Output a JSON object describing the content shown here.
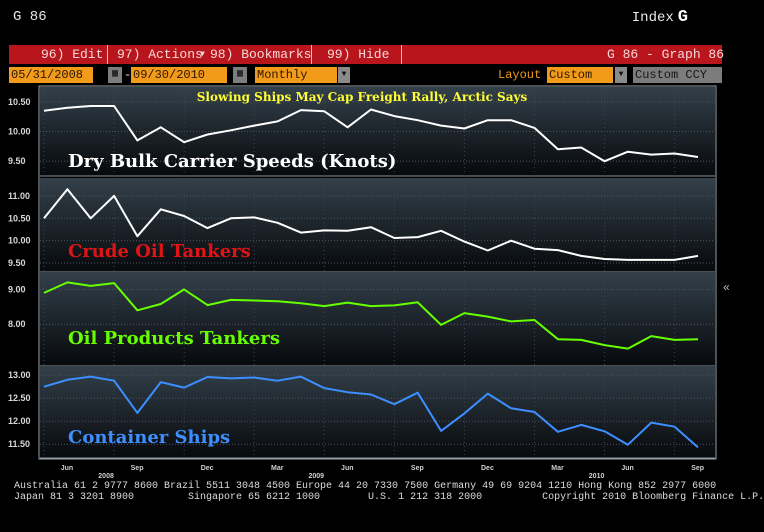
{
  "header": {
    "ticker": "G 86",
    "index_label": "Index",
    "index_key": "G"
  },
  "menu": {
    "edit": "96) Edit",
    "actions": "97) Actions",
    "bookmarks": "98) Bookmarks",
    "hide": "99) Hide",
    "graph_id": "G 86 - Graph 86"
  },
  "toolbar": {
    "start_date": "05/31/2008",
    "end_date": "09/30/2010",
    "date_sep": "-",
    "frequency": "Monthly",
    "layout_label": "Layout",
    "layout_value": "Custom",
    "currency": "Custom CCY"
  },
  "colors": {
    "menu_bar": "#b8161c",
    "field": "#f29a19",
    "title": "#ffff33",
    "panel_bg_top": "#33404a",
    "panel_bg_bottom": "#07090c"
  },
  "chart_data": [
    {
      "type": "line",
      "title": "Slowing Ships May Cap Freight Rally, Arctic Says",
      "series": [
        {
          "name": "Dry Bulk Carrier Speeds (Knots)",
          "color": "#ffffff",
          "values": [
            10.35,
            10.4,
            10.43,
            10.43,
            9.85,
            10.07,
            9.82,
            9.95,
            10.02,
            10.1,
            10.17,
            10.36,
            10.34,
            10.07,
            10.37,
            10.26,
            10.19,
            10.1,
            10.05,
            10.19,
            10.19,
            10.06,
            9.7,
            9.73,
            9.5,
            9.66,
            9.61,
            9.63,
            9.57
          ]
        }
      ],
      "yticks": [
        9.5,
        10.0,
        10.5
      ],
      "ylim": [
        9.25,
        10.75
      ]
    },
    {
      "type": "line",
      "series": [
        {
          "name": "Crude Oil Tankers",
          "color": "#ffffff",
          "values": [
            10.5,
            11.15,
            10.5,
            11.0,
            10.1,
            10.7,
            10.55,
            10.28,
            10.5,
            10.52,
            10.4,
            10.18,
            10.23,
            10.22,
            10.3,
            10.06,
            10.08,
            10.22,
            9.98,
            9.78,
            10.0,
            9.82,
            9.79,
            9.66,
            9.59,
            9.57,
            9.57,
            9.57,
            9.66
          ]
        }
      ],
      "yticks": [
        9.5,
        10.0,
        10.5,
        11.0
      ],
      "ylim": [
        9.3,
        11.4
      ]
    },
    {
      "type": "line",
      "series": [
        {
          "name": "Oil Products Tankers",
          "color": "#66ff00",
          "values": [
            8.9,
            9.2,
            9.1,
            9.18,
            8.4,
            8.58,
            9.0,
            8.55,
            8.7,
            8.68,
            8.66,
            8.6,
            8.52,
            8.62,
            8.52,
            8.54,
            8.63,
            7.98,
            8.32,
            8.22,
            8.08,
            8.12,
            7.57,
            7.55,
            7.4,
            7.3,
            7.66,
            7.55,
            7.57
          ]
        }
      ],
      "yticks": [
        8.0,
        9.0
      ],
      "ylim": [
        6.8,
        9.5
      ]
    },
    {
      "type": "line",
      "series": [
        {
          "name": "Container Ships",
          "color": "#3d8fff",
          "values": [
            12.75,
            12.9,
            12.97,
            12.88,
            12.18,
            12.85,
            12.73,
            12.96,
            12.93,
            12.95,
            12.88,
            12.97,
            12.72,
            12.63,
            12.58,
            12.37,
            12.62,
            11.79,
            12.17,
            12.6,
            12.28,
            12.2,
            11.77,
            11.92,
            11.78,
            11.49,
            11.97,
            11.88,
            11.43
          ]
        }
      ],
      "yticks": [
        11.5,
        12.0,
        12.5,
        13.0
      ],
      "ylim": [
        11.2,
        13.2
      ]
    }
  ],
  "x_axis": {
    "month_labels": [
      "Jun",
      "Sep",
      "Dec",
      "Mar",
      "Jun",
      "Sep",
      "Dec",
      "Mar",
      "Jun",
      "Sep"
    ],
    "month_label_indices": [
      0,
      3,
      6,
      9,
      12,
      15,
      18,
      21,
      24,
      27
    ],
    "year_labels": [
      "2008",
      "2009",
      "2010"
    ],
    "year_label_indices": [
      3,
      12,
      24
    ]
  },
  "footer": {
    "line1": "Australia 61 2 9777 8600 Brazil 5511 3048 4500 Europe 44 20 7330 7500 Germany 49 69 9204 1210 Hong Kong 852 2977 6000",
    "line2": "Japan 81 3 3201 8900         Singapore 65 6212 1000        U.S. 1 212 318 2000          Copyright 2010 Bloomberg Finance L.P."
  }
}
